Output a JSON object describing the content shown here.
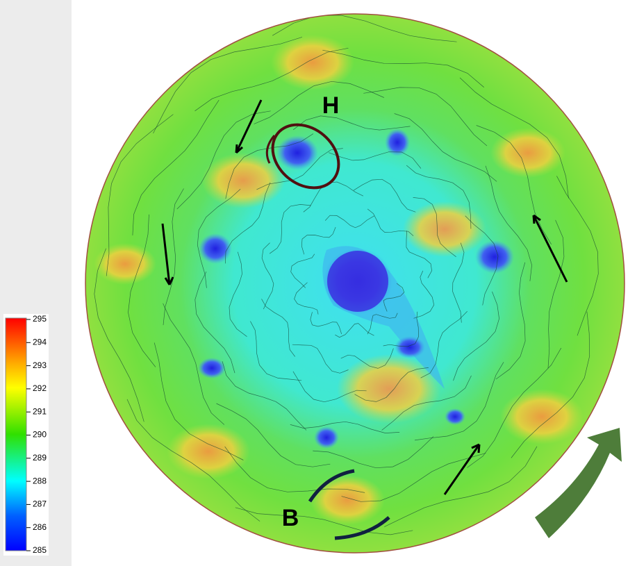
{
  "colorbar": {
    "ticks": [
      295,
      294,
      293,
      292,
      291,
      290,
      289,
      288,
      287,
      286,
      285
    ]
  },
  "annotations": {
    "vortex_label": "H",
    "bottom_label": "B"
  }
}
